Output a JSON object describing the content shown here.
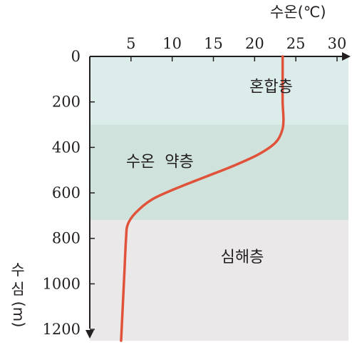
{
  "chart_data": {
    "type": "line",
    "title": "",
    "xlabel": "수온(℃)",
    "ylabel_chars": [
      "수",
      "심",
      "(m)"
    ],
    "x_axis_position": "top",
    "y_axis_inverted": true,
    "xlim": [
      0,
      30
    ],
    "ylim": [
      0,
      1250
    ],
    "x_ticks": [
      5,
      10,
      15,
      20,
      25,
      30
    ],
    "y_ticks": [
      0,
      200,
      400,
      600,
      800,
      1000,
      1200
    ],
    "grid": false,
    "layers": [
      {
        "name": "혼합층",
        "depth_range": [
          0,
          300
        ],
        "color": "#dcecea",
        "label_at": [
          22,
          130
        ]
      },
      {
        "name": "수온 약층",
        "depth_range": [
          300,
          720
        ],
        "color": "#cfe3dc",
        "label_at": [
          8.5,
          460
        ]
      },
      {
        "name": "심해층",
        "depth_range": [
          720,
          1250
        ],
        "color": "#ebe8ea",
        "label_at": [
          18.5,
          880
        ]
      }
    ],
    "series": [
      {
        "color": "#e0523a",
        "x": [
          23.4,
          23.4,
          23.4,
          23.5,
          23.3,
          22.5,
          20.5,
          17.5,
          14.0,
          10.5,
          7.5,
          5.5,
          4.6,
          4.4,
          4.2,
          4.0,
          3.8
        ],
        "y": [
          0,
          100,
          200,
          280,
          330,
          380,
          430,
          480,
          530,
          580,
          630,
          690,
          740,
          800,
          950,
          1100,
          1250
        ]
      }
    ]
  }
}
